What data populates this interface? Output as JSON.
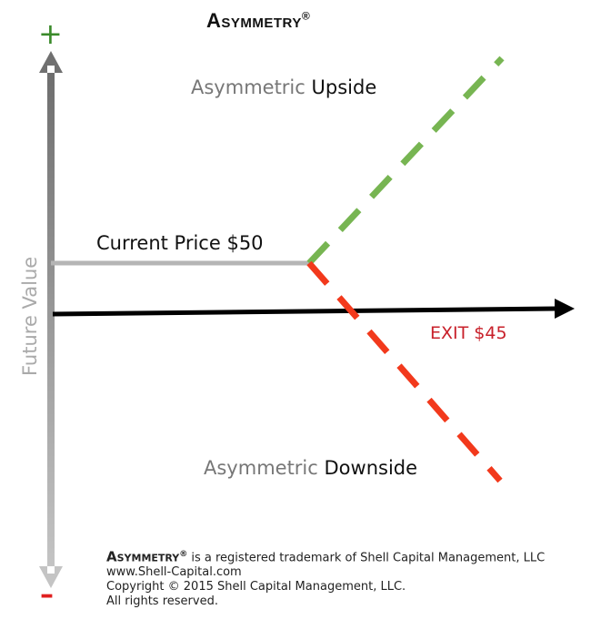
{
  "title": "Asymmetry",
  "title_mark": "®",
  "axis": {
    "plus": "+",
    "minus": "–",
    "y_label": "Future Value"
  },
  "labels": {
    "upside_prefix": "Asymmetric",
    "upside_word": "Upside",
    "downside_prefix": "Asymmetric",
    "downside_word": "Downside",
    "current_price": "Current Price $50",
    "exit": "EXIT $45"
  },
  "footer": {
    "brand": "Asymmetry",
    "brand_mark": "®",
    "trademark": " is a registered trademark of Shell Capital Management, LLC",
    "website": "www.Shell-Capital.com",
    "copyright": "Copyright © 2015 Shell Capital Management, LLC.",
    "rights": "All rights reserved."
  },
  "colors": {
    "upside": "#77b552",
    "downside": "#f2391c",
    "exit_text": "#c8202a",
    "plus": "#3a8a2a",
    "minus": "#e02020",
    "current_price_line": "#b5b5b5"
  }
}
